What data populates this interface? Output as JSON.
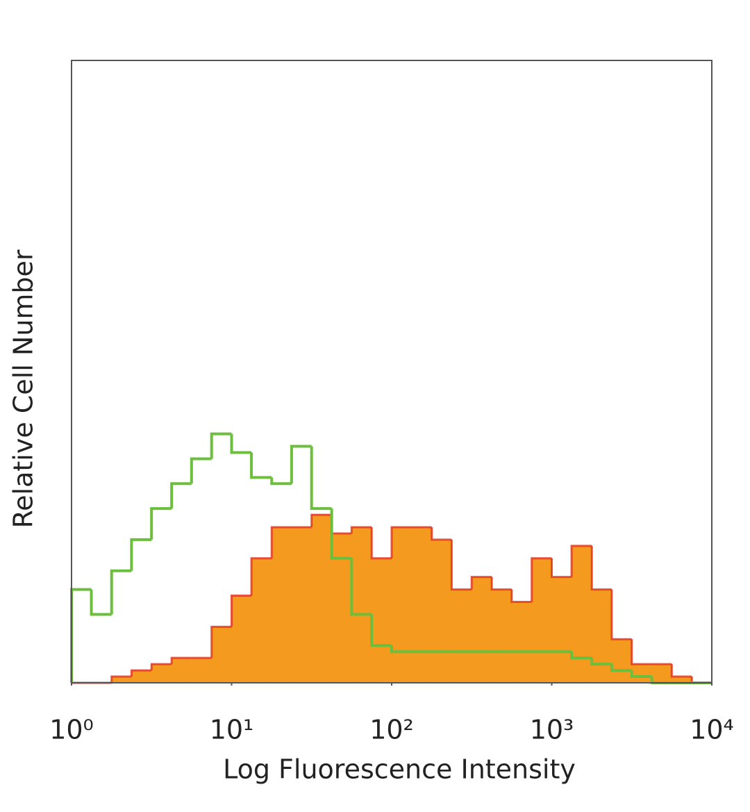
{
  "chart_data": {
    "type": "histogram",
    "x_label": "Log Fluorescence Intensity",
    "y_label": "Relative Cell Number",
    "xscale": "log",
    "xlim": [
      1,
      10000
    ],
    "xticks": [
      {
        "value": 1,
        "label": "10⁰"
      },
      {
        "value": 10,
        "label": "10¹"
      },
      {
        "value": 100,
        "label": "10²"
      },
      {
        "value": 1000,
        "label": "10³"
      },
      {
        "value": 10000,
        "label": "10⁴"
      }
    ],
    "ylim": [
      0,
      100
    ],
    "bins": [
      1,
      1.33,
      1.78,
      2.37,
      3.16,
      4.22,
      5.62,
      7.5,
      10,
      13.3,
      17.8,
      23.7,
      31.6,
      42.2,
      56.2,
      75,
      100,
      133,
      178,
      237,
      316,
      422,
      562,
      750,
      1000,
      1330,
      1780,
      2370,
      3160,
      4220,
      5620,
      7500,
      10000
    ],
    "series": [
      {
        "color": "#f39a1f",
        "edge_color": "#e0301e",
        "fill": true,
        "values": [
          0,
          0,
          1,
          2,
          3,
          4,
          4,
          9,
          14,
          20,
          25,
          25,
          27,
          24,
          25,
          20,
          25,
          25,
          23,
          15,
          17,
          15,
          13,
          20,
          17,
          22,
          15,
          7,
          3,
          3,
          1,
          0
        ]
      },
      {
        "color": "#6cbf3c",
        "fill": false,
        "values": [
          15,
          11,
          18,
          23,
          28,
          32,
          36,
          40,
          37,
          33,
          32,
          38,
          28,
          20,
          11,
          6,
          5,
          5,
          5,
          5,
          5,
          5,
          5,
          5,
          5,
          4,
          3,
          2,
          1,
          0,
          0,
          0
        ]
      }
    ]
  }
}
